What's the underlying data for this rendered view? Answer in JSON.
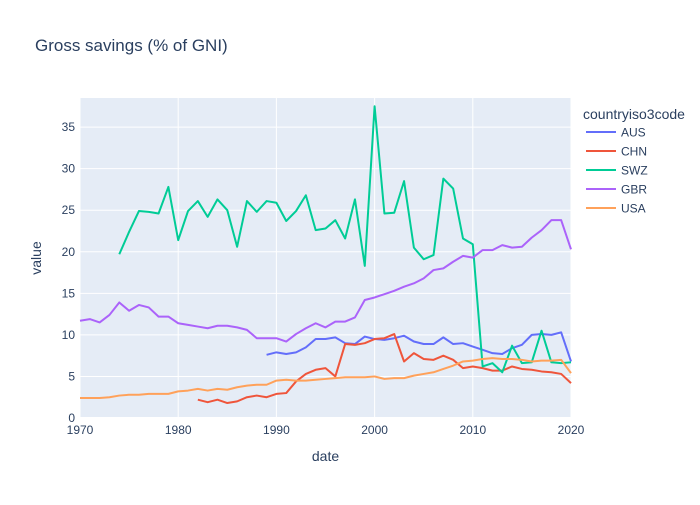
{
  "chart_data": {
    "type": "line",
    "title": "Gross savings (% of GNI)",
    "xlabel": "date",
    "ylabel": "value",
    "xlim": [
      1970,
      2020
    ],
    "ylim": [
      0,
      38.5
    ],
    "x_ticks": [
      1970,
      1980,
      1990,
      2000,
      2010,
      2020
    ],
    "y_ticks": [
      0,
      5,
      10,
      15,
      20,
      25,
      30,
      35
    ],
    "grid": true,
    "legend": {
      "title": "countryiso3code",
      "placement": "right"
    },
    "series": [
      {
        "name": "AUS",
        "color": "#636efa",
        "x": [
          1989,
          1990,
          1991,
          1992,
          1993,
          1994,
          1995,
          1996,
          1997,
          1998,
          1999,
          2000,
          2001,
          2002,
          2003,
          2004,
          2005,
          2006,
          2007,
          2008,
          2009,
          2010,
          2011,
          2012,
          2013,
          2014,
          2015,
          2016,
          2017,
          2018,
          2019,
          2020
        ],
        "values": [
          7.6,
          7.9,
          7.7,
          7.9,
          8.5,
          9.5,
          9.5,
          9.7,
          9.0,
          8.9,
          9.8,
          9.5,
          9.4,
          9.6,
          9.9,
          9.2,
          8.9,
          8.9,
          9.7,
          8.9,
          9.0,
          8.6,
          8.2,
          7.8,
          7.7,
          8.4,
          8.8,
          10.0,
          10.1,
          10.0,
          10.3,
          6.8
        ]
      },
      {
        "name": "CHN",
        "color": "#EF553B",
        "x": [
          1982,
          1983,
          1984,
          1985,
          1986,
          1987,
          1988,
          1989,
          1990,
          1991,
          1992,
          1993,
          1994,
          1995,
          1996,
          1997,
          1998,
          1999,
          2000,
          2001,
          2002,
          2003,
          2004,
          2005,
          2006,
          2007,
          2008,
          2009,
          2010,
          2011,
          2012,
          2013,
          2014,
          2015,
          2016,
          2017,
          2018,
          2019,
          2020
        ],
        "values": [
          2.2,
          1.9,
          2.2,
          1.8,
          2.0,
          2.5,
          2.7,
          2.5,
          2.9,
          3.0,
          4.4,
          5.3,
          5.8,
          6.0,
          5.0,
          8.9,
          8.8,
          9.0,
          9.5,
          9.6,
          10.1,
          6.8,
          7.8,
          7.1,
          7.0,
          7.5,
          7.0,
          6.0,
          6.2,
          6.0,
          5.7,
          5.7,
          6.2,
          5.9,
          5.8,
          5.6,
          5.5,
          5.3,
          4.2
        ]
      },
      {
        "name": "SWZ",
        "color": "#00cc96",
        "x": [
          1974,
          1975,
          1976,
          1977,
          1978,
          1979,
          1980,
          1981,
          1982,
          1983,
          1984,
          1985,
          1986,
          1987,
          1988,
          1989,
          1990,
          1991,
          1992,
          1993,
          1994,
          1995,
          1996,
          1997,
          1998,
          1999,
          2000,
          2001,
          2002,
          2003,
          2004,
          2005,
          2006,
          2007,
          2008,
          2009,
          2010,
          2011,
          2012,
          2013,
          2014,
          2015,
          2016,
          2017,
          2018,
          2019,
          2020
        ],
        "values": [
          19.7,
          22.4,
          24.9,
          24.8,
          24.6,
          27.8,
          21.4,
          24.9,
          26.1,
          24.2,
          26.3,
          25.0,
          20.6,
          26.1,
          24.8,
          26.1,
          25.9,
          23.7,
          24.9,
          26.8,
          22.6,
          22.8,
          23.8,
          21.6,
          26.3,
          18.3,
          37.5,
          24.6,
          24.7,
          28.5,
          20.5,
          19.1,
          19.6,
          28.8,
          27.6,
          21.6,
          20.9,
          6.2,
          6.6,
          5.5,
          8.7,
          6.6,
          6.7,
          10.5,
          6.7,
          6.6,
          6.7
        ]
      },
      {
        "name": "GBR",
        "color": "#ab63fa",
        "x": [
          1970,
          1971,
          1972,
          1973,
          1974,
          1975,
          1976,
          1977,
          1978,
          1979,
          1980,
          1981,
          1982,
          1983,
          1984,
          1985,
          1986,
          1987,
          1988,
          1989,
          1990,
          1991,
          1992,
          1993,
          1994,
          1995,
          1996,
          1997,
          1998,
          1999,
          2000,
          2001,
          2002,
          2003,
          2004,
          2005,
          2006,
          2007,
          2008,
          2009,
          2010,
          2011,
          2012,
          2013,
          2014,
          2015,
          2016,
          2017,
          2018,
          2019,
          2020
        ],
        "values": [
          11.7,
          11.9,
          11.5,
          12.4,
          13.9,
          12.9,
          13.6,
          13.3,
          12.2,
          12.2,
          11.4,
          11.2,
          11.0,
          10.8,
          11.1,
          11.1,
          10.9,
          10.6,
          9.6,
          9.6,
          9.6,
          9.2,
          10.1,
          10.8,
          11.4,
          10.9,
          11.6,
          11.6,
          12.1,
          14.2,
          14.5,
          14.9,
          15.3,
          15.8,
          16.2,
          16.8,
          17.8,
          18.0,
          18.8,
          19.5,
          19.3,
          20.2,
          20.2,
          20.8,
          20.5,
          20.6,
          21.7,
          22.6,
          23.8,
          23.8,
          20.3
        ]
      },
      {
        "name": "USA",
        "color": "#FFA15A",
        "x": [
          1970,
          1971,
          1972,
          1973,
          1974,
          1975,
          1976,
          1977,
          1978,
          1979,
          1980,
          1981,
          1982,
          1983,
          1984,
          1985,
          1986,
          1987,
          1988,
          1989,
          1990,
          1991,
          1992,
          1993,
          1994,
          1995,
          1996,
          1997,
          1998,
          1999,
          2000,
          2001,
          2002,
          2003,
          2004,
          2005,
          2006,
          2007,
          2008,
          2009,
          2010,
          2011,
          2012,
          2013,
          2014,
          2015,
          2016,
          2017,
          2018,
          2019,
          2020
        ],
        "values": [
          2.4,
          2.4,
          2.4,
          2.5,
          2.7,
          2.8,
          2.8,
          2.9,
          2.9,
          2.9,
          3.2,
          3.3,
          3.5,
          3.3,
          3.5,
          3.4,
          3.7,
          3.9,
          4.0,
          4.0,
          4.5,
          4.6,
          4.5,
          4.5,
          4.6,
          4.7,
          4.8,
          4.9,
          4.9,
          4.9,
          5.0,
          4.7,
          4.8,
          4.8,
          5.1,
          5.3,
          5.5,
          5.9,
          6.3,
          6.8,
          6.9,
          7.1,
          7.2,
          7.1,
          7.1,
          7.0,
          6.8,
          6.9,
          6.9,
          7.0,
          5.4
        ]
      }
    ]
  }
}
